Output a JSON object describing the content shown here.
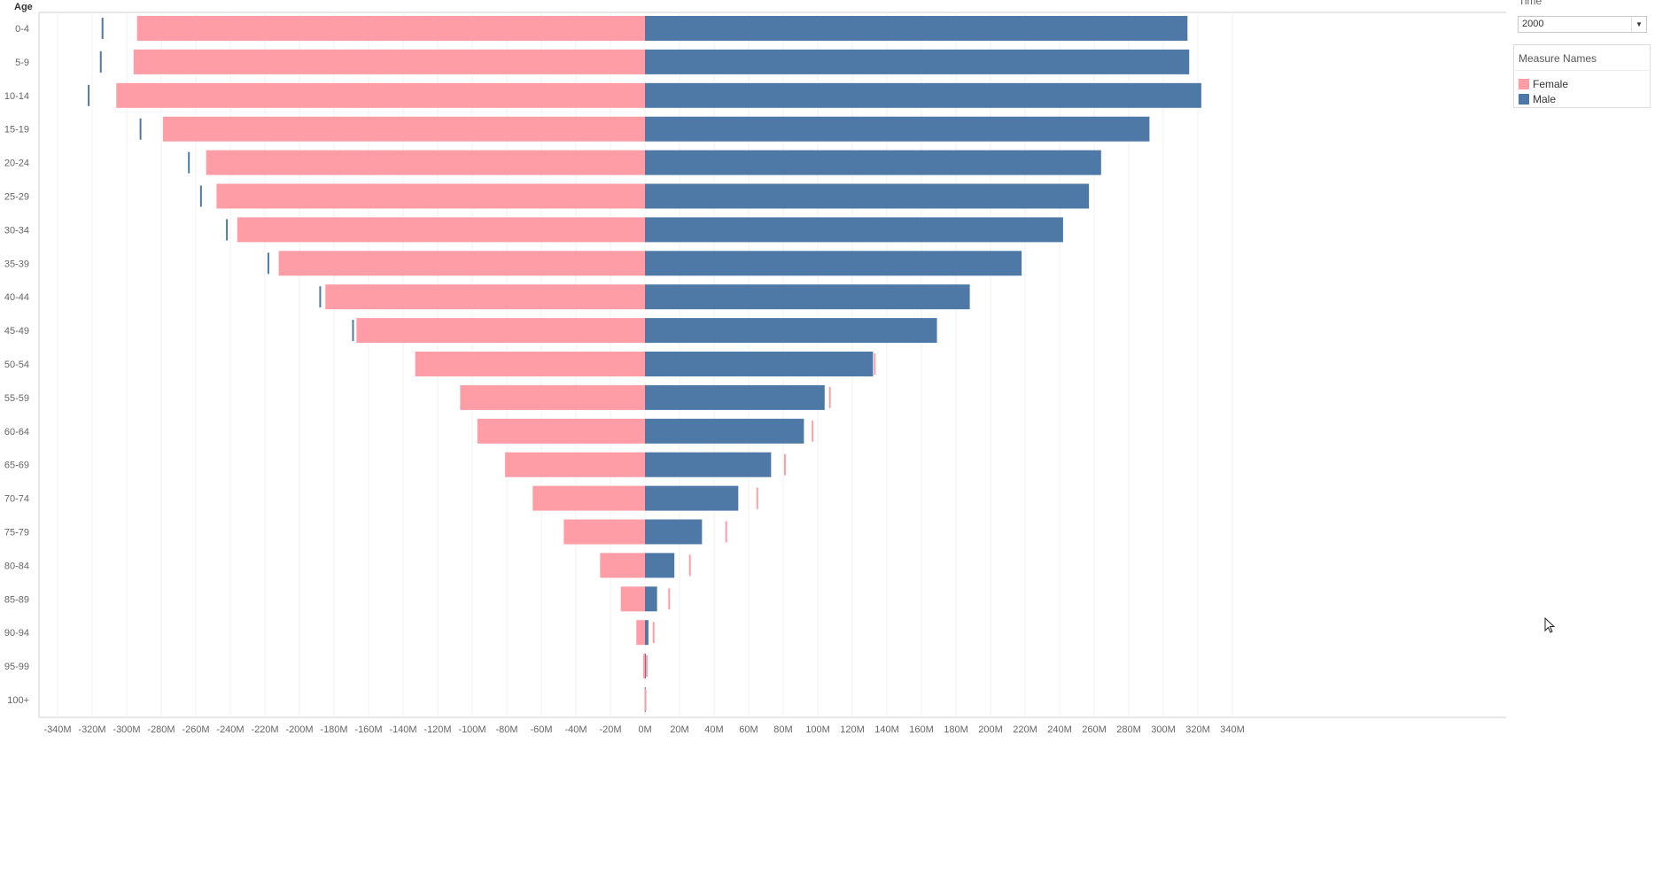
{
  "chart_data": {
    "type": "bar",
    "subtype": "population-pyramid",
    "ylabel": "Age",
    "categories": [
      "0-4",
      "5-9",
      "10-14",
      "15-19",
      "20-24",
      "25-29",
      "30-34",
      "35-39",
      "40-44",
      "45-49",
      "50-54",
      "55-59",
      "60-64",
      "65-69",
      "70-74",
      "75-79",
      "80-84",
      "85-89",
      "90-94",
      "95-99",
      "100+"
    ],
    "series": [
      {
        "name": "Female",
        "color": "#ff9da7",
        "side": "negative",
        "values": [
          294,
          296,
          306,
          279,
          254,
          248,
          236,
          212,
          185,
          167,
          133,
          107,
          97,
          81,
          65,
          47,
          26,
          14,
          5,
          1,
          0.3
        ]
      },
      {
        "name": "Male",
        "color": "#4e79a7",
        "side": "positive",
        "values": [
          314,
          315,
          322,
          292,
          264,
          257,
          242,
          218,
          188,
          169,
          132,
          104,
          92,
          73,
          54,
          33,
          17,
          7,
          2,
          0.5,
          0.1
        ]
      }
    ],
    "reference_ticks": {
      "male_mirror": {
        "series": "Male",
        "color": "#4e79a7",
        "values": [
          314,
          315,
          322,
          292,
          264,
          257,
          242,
          218,
          188,
          169
        ]
      },
      "female_mirror": {
        "series": "Female",
        "color": "#ff9da7",
        "values": [
          133,
          107,
          97,
          81,
          65,
          47,
          26,
          14,
          5,
          1,
          0.3
        ]
      }
    },
    "x_ticks": [
      -340,
      -320,
      -300,
      -280,
      -260,
      -240,
      -220,
      -200,
      -180,
      -160,
      -140,
      -120,
      -100,
      -80,
      -60,
      -40,
      -20,
      0,
      20,
      40,
      60,
      80,
      100,
      120,
      140,
      160,
      180,
      200,
      220,
      240,
      260,
      280,
      300,
      320,
      340
    ],
    "x_tick_suffix": "M",
    "xlim": [
      -345,
      355
    ],
    "grid": "vertical"
  },
  "filters": {
    "time_title": "Time",
    "time_value": "2000"
  },
  "legend": {
    "title": "Measure Names",
    "items": [
      {
        "label": "Female",
        "color": "#ff9da7"
      },
      {
        "label": "Male",
        "color": "#4e79a7"
      }
    ]
  }
}
